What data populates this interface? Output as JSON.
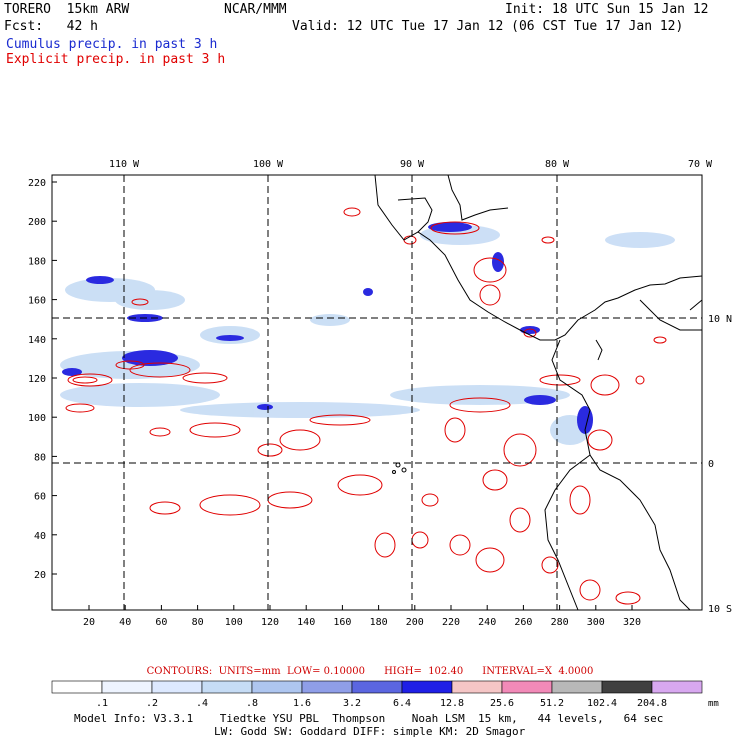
{
  "header": {
    "model": "TORERO  15km ARW",
    "center": "NCAR/MMM",
    "init": "Init: 18 UTC Sun 15 Jan 12",
    "fcst": "Fcst:   42 h",
    "valid": "Valid: 12 UTC Tue 17 Jan 12 (06 CST Tue 17 Jan 12)",
    "cumulus": "Cumulus precip. in past 3 h",
    "explicit": "Explicit precip. in past 3 h",
    "cumulus_color": "#1a2bd0",
    "explicit_color": "#e00000"
  },
  "axes": {
    "lon_labels": [
      "110 W",
      "100 W",
      "90 W",
      "80 W",
      "70 W"
    ],
    "lat_labels": [
      "10 N",
      "0",
      "10 S"
    ],
    "y_ticks": [
      "220",
      "200",
      "180",
      "160",
      "140",
      "120",
      "100",
      "80",
      "60",
      "40",
      "20"
    ],
    "x_ticks": [
      "20",
      "40",
      "60",
      "80",
      "100",
      "120",
      "140",
      "160",
      "180",
      "200",
      "220",
      "240",
      "260",
      "280",
      "300",
      "320"
    ]
  },
  "legend": {
    "title": "CONTOURS:  UNITS=mm  LOW= 0.10000      HIGH=  102.40      INTERVAL=X  4.0000",
    "labels": [
      ".1",
      ".2",
      ".4",
      ".8",
      "1.6",
      "3.2",
      "6.4",
      "12.8",
      "25.6",
      "51.2",
      "102.4",
      "204.8"
    ],
    "units": "mm",
    "colors": [
      "#ffffff",
      "#eef4ff",
      "#dde9ff",
      "#c6dcf5",
      "#aec6f0",
      "#8f9ee8",
      "#5b66e0",
      "#1f1fe6",
      "#f5c6c6",
      "#f28ab8",
      "#b8b8b8",
      "#404040",
      "#d8a8f0"
    ]
  },
  "footer": {
    "line1": "Model Info: V3.3.1    Tiedtke YSU PBL  Thompson    Noah LSM  15 km,   44 levels,   64 sec",
    "line2": "LW: Godd SW: Goddard DIFF: simple KM: 2D Smagor"
  }
}
